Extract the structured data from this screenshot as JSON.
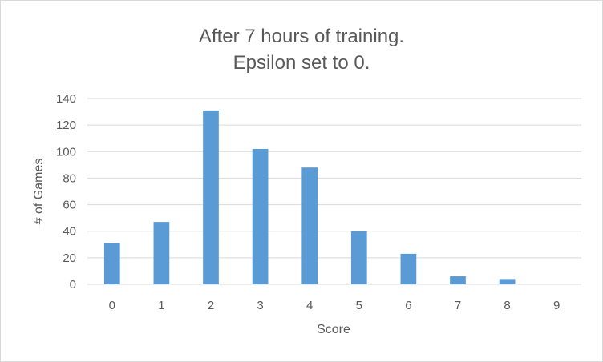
{
  "chart_data": {
    "type": "bar",
    "title": [
      "After 7 hours of training.",
      "Epsilon set to 0."
    ],
    "xlabel": "Score",
    "ylabel": "# of Games",
    "categories": [
      "0",
      "1",
      "2",
      "3",
      "4",
      "5",
      "6",
      "7",
      "8",
      "9"
    ],
    "values": [
      31,
      47,
      131,
      102,
      88,
      40,
      23,
      6,
      4,
      0
    ],
    "ylim": [
      0,
      140
    ],
    "yticks": [
      0,
      20,
      40,
      60,
      80,
      100,
      120,
      140
    ],
    "grid": true,
    "legend": "none",
    "bar_color": "#5b9bd5",
    "grid_color": "#d9d9d9",
    "text_color": "#595959"
  }
}
